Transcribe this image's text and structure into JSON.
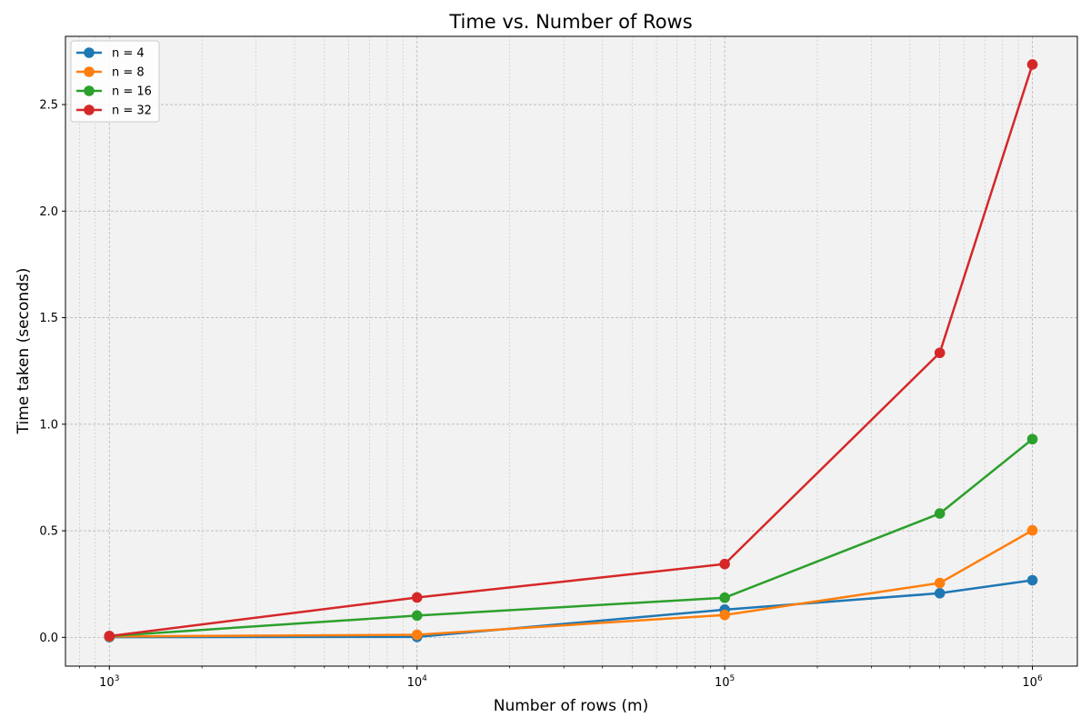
{
  "chart_data": {
    "type": "line",
    "title": "Time vs. Number of Rows",
    "xlabel": "Number of rows (m)",
    "ylabel": "Time taken (seconds)",
    "x_scale": "log",
    "xlim": [
      720,
      1400000
    ],
    "ylim": [
      -0.135,
      2.82
    ],
    "x_ticks": [
      {
        "value": 1000,
        "base": "10",
        "exp": "3"
      },
      {
        "value": 10000,
        "base": "10",
        "exp": "4"
      },
      {
        "value": 100000,
        "base": "10",
        "exp": "5"
      },
      {
        "value": 1000000,
        "base": "10",
        "exp": "6"
      }
    ],
    "y_ticks": [
      {
        "value": 0.0,
        "label": "0.0"
      },
      {
        "value": 0.5,
        "label": "0.5"
      },
      {
        "value": 1.0,
        "label": "1.0"
      },
      {
        "value": 1.5,
        "label": "1.5"
      },
      {
        "value": 2.0,
        "label": "2.0"
      },
      {
        "value": 2.5,
        "label": "2.5"
      }
    ],
    "grid": true,
    "legend_position": "top-left",
    "x": [
      1000,
      10000,
      100000,
      500000,
      1000000
    ],
    "series": [
      {
        "name": "n = 4",
        "color": "#1f77b4",
        "values": [
          0.001,
          0.002,
          0.13,
          0.207,
          0.268
        ]
      },
      {
        "name": "n = 8",
        "color": "#ff7f0e",
        "values": [
          0.004,
          0.012,
          0.105,
          0.255,
          0.502
        ]
      },
      {
        "name": "n = 16",
        "color": "#2ca02c",
        "values": [
          0.006,
          0.102,
          0.186,
          0.581,
          0.93
        ]
      },
      {
        "name": "n = 32",
        "color": "#d62728",
        "values": [
          0.006,
          0.187,
          0.344,
          1.335,
          2.688
        ]
      }
    ]
  }
}
